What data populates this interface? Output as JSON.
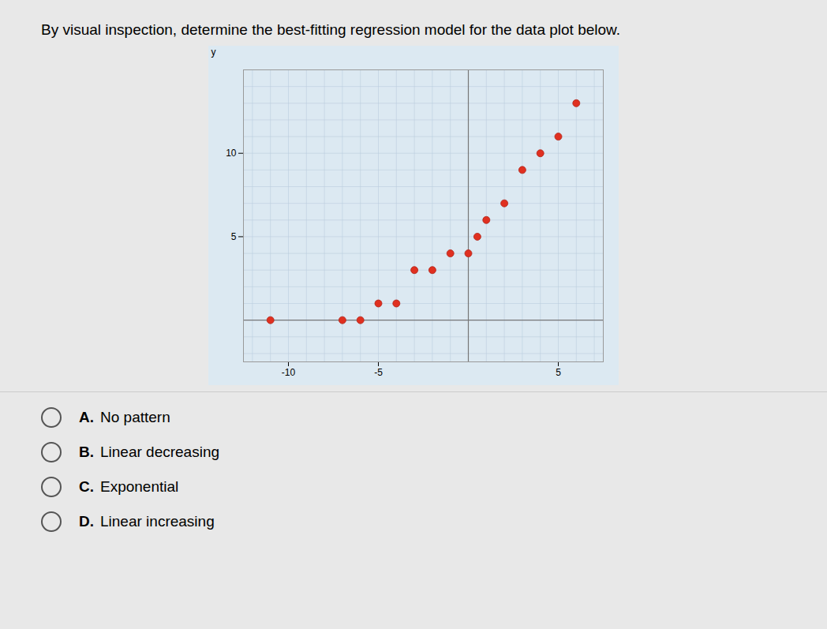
{
  "chart_data": {
    "type": "scatter",
    "title": "By visual inspection, determine the best-fitting regression model for the data plot below.",
    "x": [
      -11,
      -7,
      -6,
      -5,
      -4,
      -3,
      -2,
      -1,
      0,
      0.5,
      1,
      2,
      3,
      4,
      5,
      6
    ],
    "values": [
      0,
      0,
      0,
      1,
      1,
      3,
      3,
      4,
      4,
      5,
      6,
      7,
      9,
      10,
      11,
      13
    ],
    "color": "#e03020",
    "xlim": [
      -12.5,
      7.5
    ],
    "ylim": [
      -2.5,
      15
    ],
    "xticks": [
      -10,
      -5,
      5
    ],
    "yticks": [
      5,
      10
    ],
    "ylabel": "y",
    "grid": true,
    "annotations": [
      "A. No pattern",
      "B. Linear decreasing",
      "C. Exponential",
      "D. Linear increasing"
    ]
  }
}
